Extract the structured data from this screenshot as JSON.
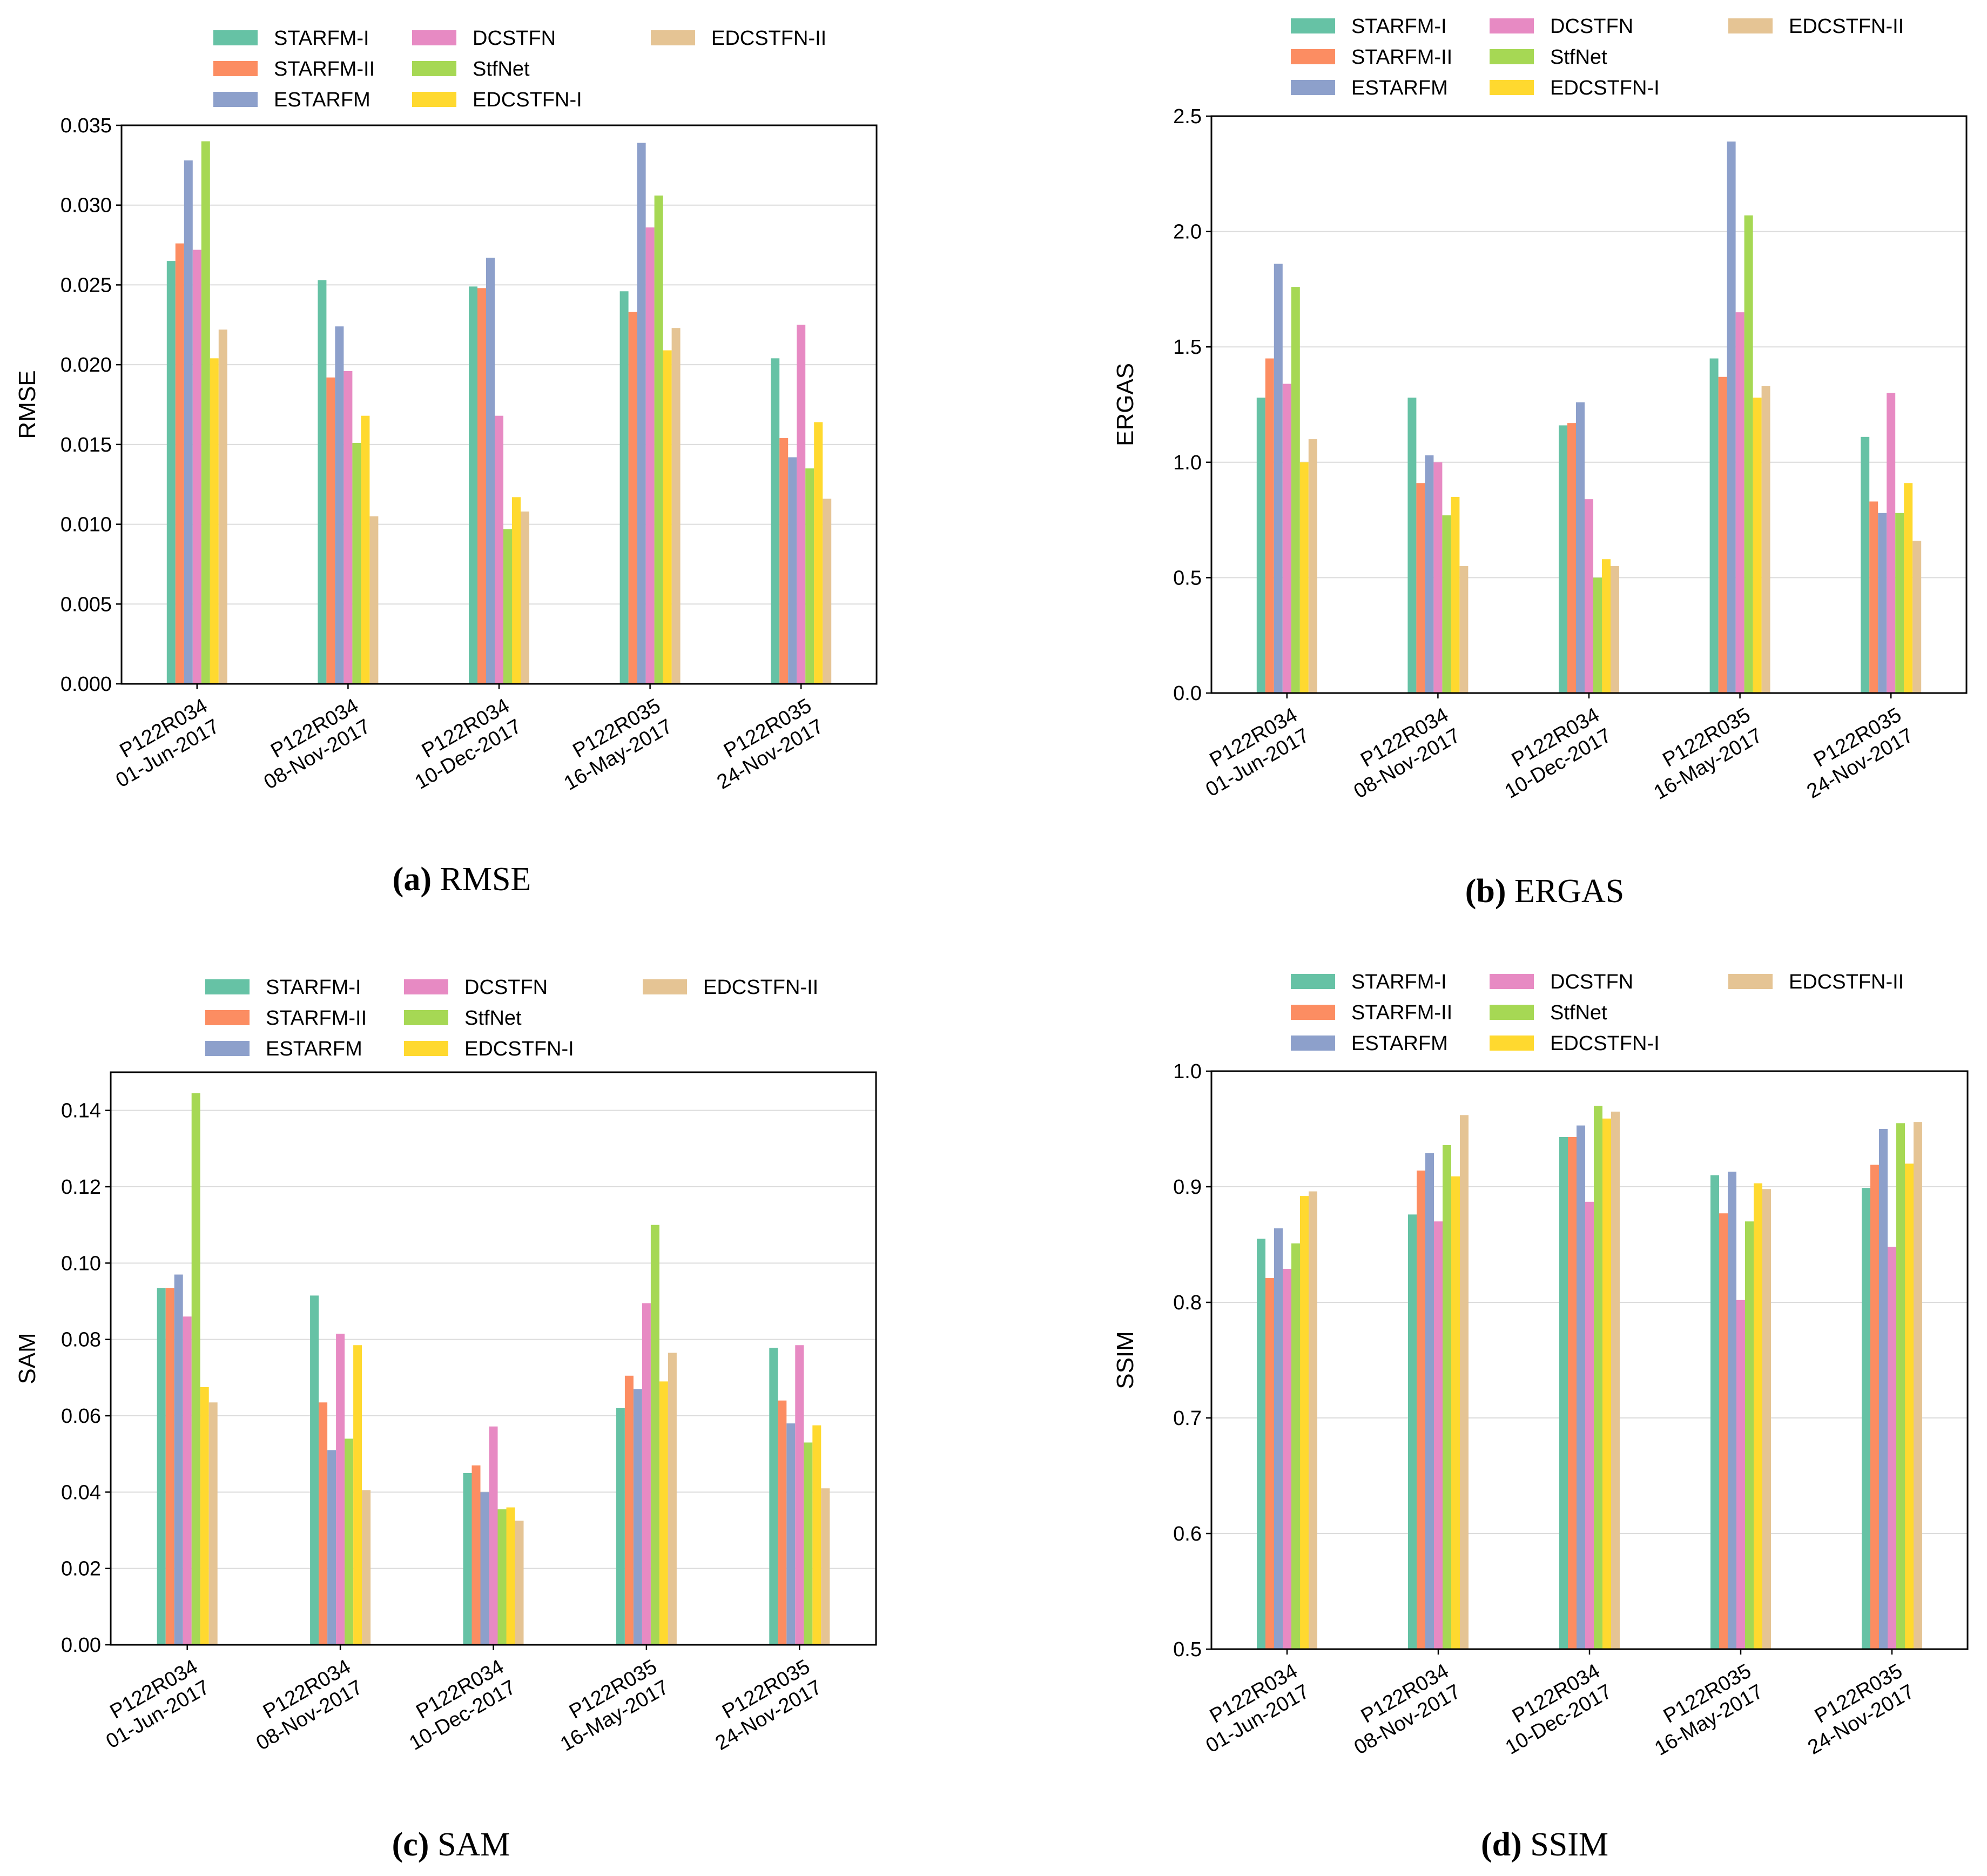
{
  "colors": {
    "STARFM-I": "#66c2a5",
    "STARFM-II": "#fc8d62",
    "ESTARFM": "#8da0cb",
    "DCSTFN": "#e78ac3",
    "StfNet": "#a6d854",
    "EDCSTFN-I": "#ffd92f",
    "EDCSTFN-II": "#e5c494"
  },
  "chart_data": [
    {
      "type": "bar",
      "panel": "a",
      "caption_letter": "(a)",
      "caption_text": "RMSE",
      "ylabel": "RMSE",
      "ylim": [
        0,
        0.035
      ],
      "yticks": [
        "0.000",
        "0.005",
        "0.010",
        "0.015",
        "0.020",
        "0.025",
        "0.030",
        "0.035"
      ],
      "grid": true,
      "legend": [
        "STARFM-I",
        "STARFM-II",
        "ESTARFM",
        "DCSTFN",
        "StfNet",
        "EDCSTFN-I",
        "EDCSTFN-II"
      ],
      "categories": [
        [
          "P122R034",
          "01-Jun-2017"
        ],
        [
          "P122R034",
          "08-Nov-2017"
        ],
        [
          "P122R034",
          "10-Dec-2017"
        ],
        [
          "P122R035",
          "16-May-2017"
        ],
        [
          "P122R035",
          "24-Nov-2017"
        ]
      ],
      "series": [
        {
          "name": "STARFM-I",
          "values": [
            0.0265,
            0.0253,
            0.0249,
            0.0246,
            0.0204
          ]
        },
        {
          "name": "STARFM-II",
          "values": [
            0.0276,
            0.0192,
            0.0248,
            0.0233,
            0.0154
          ]
        },
        {
          "name": "ESTARFM",
          "values": [
            0.0328,
            0.0224,
            0.0267,
            0.0339,
            0.0142
          ]
        },
        {
          "name": "DCSTFN",
          "values": [
            0.0272,
            0.0196,
            0.0168,
            0.0286,
            0.0225
          ]
        },
        {
          "name": "StfNet",
          "values": [
            0.034,
            0.0151,
            0.0097,
            0.0306,
            0.0135
          ]
        },
        {
          "name": "EDCSTFN-I",
          "values": [
            0.0204,
            0.0168,
            0.0117,
            0.0209,
            0.0164
          ]
        },
        {
          "name": "EDCSTFN-II",
          "values": [
            0.0222,
            0.0105,
            0.0108,
            0.0223,
            0.0116
          ]
        }
      ]
    },
    {
      "type": "bar",
      "panel": "b",
      "caption_letter": "(b)",
      "caption_text": "ERGAS",
      "ylabel": "ERGAS",
      "ylim": [
        0,
        2.5
      ],
      "yticks": [
        "0.0",
        "0.5",
        "1.0",
        "1.5",
        "2.0",
        "2.5"
      ],
      "grid": true,
      "legend": [
        "STARFM-I",
        "STARFM-II",
        "ESTARFM",
        "DCSTFN",
        "StfNet",
        "EDCSTFN-I",
        "EDCSTFN-II"
      ],
      "categories": [
        [
          "P122R034",
          "01-Jun-2017"
        ],
        [
          "P122R034",
          "08-Nov-2017"
        ],
        [
          "P122R034",
          "10-Dec-2017"
        ],
        [
          "P122R035",
          "16-May-2017"
        ],
        [
          "P122R035",
          "24-Nov-2017"
        ]
      ],
      "series": [
        {
          "name": "STARFM-I",
          "values": [
            1.28,
            1.28,
            1.16,
            1.45,
            1.11
          ]
        },
        {
          "name": "STARFM-II",
          "values": [
            1.45,
            0.91,
            1.17,
            1.37,
            0.83
          ]
        },
        {
          "name": "ESTARFM",
          "values": [
            1.86,
            1.03,
            1.26,
            2.39,
            0.78
          ]
        },
        {
          "name": "DCSTFN",
          "values": [
            1.34,
            1.0,
            0.84,
            1.65,
            1.3
          ]
        },
        {
          "name": "StfNet",
          "values": [
            1.76,
            0.77,
            0.5,
            2.07,
            0.78
          ]
        },
        {
          "name": "EDCSTFN-I",
          "values": [
            1.0,
            0.85,
            0.58,
            1.28,
            0.91
          ]
        },
        {
          "name": "EDCSTFN-II",
          "values": [
            1.1,
            0.55,
            0.55,
            1.33,
            0.66
          ]
        }
      ]
    },
    {
      "type": "bar",
      "panel": "c",
      "caption_letter": "(c)",
      "caption_text": "SAM",
      "ylabel": "SAM",
      "ylim": [
        0,
        0.15
      ],
      "yticks": [
        "0.00",
        "0.02",
        "0.04",
        "0.06",
        "0.08",
        "0.10",
        "0.12",
        "0.14"
      ],
      "grid": true,
      "legend": [
        "STARFM-I",
        "STARFM-II",
        "ESTARFM",
        "DCSTFN",
        "StfNet",
        "EDCSTFN-I",
        "EDCSTFN-II"
      ],
      "categories": [
        [
          "P122R034",
          "01-Jun-2017"
        ],
        [
          "P122R034",
          "08-Nov-2017"
        ],
        [
          "P122R034",
          "10-Dec-2017"
        ],
        [
          "P122R035",
          "16-May-2017"
        ],
        [
          "P122R035",
          "24-Nov-2017"
        ]
      ],
      "series": [
        {
          "name": "STARFM-I",
          "values": [
            0.0935,
            0.0915,
            0.045,
            0.062,
            0.0778
          ]
        },
        {
          "name": "STARFM-II",
          "values": [
            0.0935,
            0.0635,
            0.047,
            0.0705,
            0.064
          ]
        },
        {
          "name": "ESTARFM",
          "values": [
            0.097,
            0.051,
            0.04,
            0.067,
            0.058
          ]
        },
        {
          "name": "DCSTFN",
          "values": [
            0.086,
            0.0815,
            0.0572,
            0.0895,
            0.0785
          ]
        },
        {
          "name": "StfNet",
          "values": [
            0.1445,
            0.054,
            0.0355,
            0.11,
            0.053
          ]
        },
        {
          "name": "EDCSTFN-I",
          "values": [
            0.0675,
            0.0785,
            0.036,
            0.069,
            0.0575
          ]
        },
        {
          "name": "EDCSTFN-II",
          "values": [
            0.0635,
            0.0405,
            0.0325,
            0.0765,
            0.041
          ]
        }
      ]
    },
    {
      "type": "bar",
      "panel": "d",
      "caption_letter": "(d)",
      "caption_text": "SSIM",
      "ylabel": "SSIM",
      "ylim": [
        0.5,
        1.0
      ],
      "yticks": [
        "0.5",
        "0.6",
        "0.7",
        "0.8",
        "0.9",
        "1.0"
      ],
      "grid": true,
      "legend": [
        "STARFM-I",
        "STARFM-II",
        "ESTARFM",
        "DCSTFN",
        "StfNet",
        "EDCSTFN-I",
        "EDCSTFN-II"
      ],
      "categories": [
        [
          "P122R034",
          "01-Jun-2017"
        ],
        [
          "P122R034",
          "08-Nov-2017"
        ],
        [
          "P122R034",
          "10-Dec-2017"
        ],
        [
          "P122R035",
          "16-May-2017"
        ],
        [
          "P122R035",
          "24-Nov-2017"
        ]
      ],
      "series": [
        {
          "name": "STARFM-I",
          "values": [
            0.855,
            0.876,
            0.943,
            0.91,
            0.899
          ]
        },
        {
          "name": "STARFM-II",
          "values": [
            0.821,
            0.914,
            0.943,
            0.877,
            0.919
          ]
        },
        {
          "name": "ESTARFM",
          "values": [
            0.864,
            0.929,
            0.953,
            0.913,
            0.95
          ]
        },
        {
          "name": "DCSTFN",
          "values": [
            0.829,
            0.87,
            0.887,
            0.802,
            0.848
          ]
        },
        {
          "name": "StfNet",
          "values": [
            0.851,
            0.936,
            0.97,
            0.87,
            0.955
          ]
        },
        {
          "name": "EDCSTFN-I",
          "values": [
            0.892,
            0.909,
            0.959,
            0.903,
            0.92
          ]
        },
        {
          "name": "EDCSTFN-II",
          "values": [
            0.896,
            0.962,
            0.965,
            0.898,
            0.956
          ]
        }
      ]
    }
  ]
}
